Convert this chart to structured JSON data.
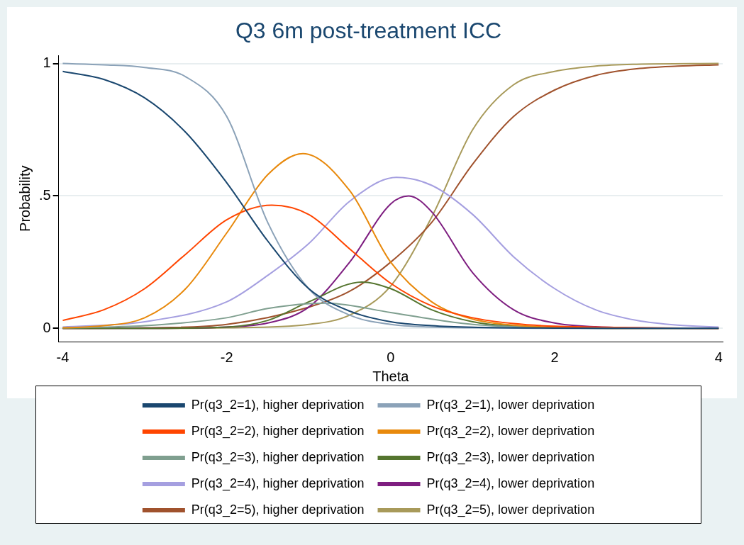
{
  "chart_data": {
    "type": "line",
    "title": "Q3 6m post-treatment ICC",
    "xlabel": "Theta",
    "ylabel": "Probability",
    "xlim": [
      -4.05,
      4.05
    ],
    "xticks": [
      -4,
      -2,
      0,
      2,
      4
    ],
    "ylim": [
      -0.05,
      1.03
    ],
    "yticks": [
      0,
      {
        "value": 0.5,
        "label": ".5"
      },
      1
    ],
    "grid": "y",
    "legend": "bottom",
    "marker": "none",
    "line_style": "solid",
    "series": [
      {
        "name": "Pr(q3_2=1), higher deprivation",
        "color": "#1a476f",
        "x": [
          -4,
          -3.5,
          -3,
          -2.5,
          -2,
          -1.5,
          -1,
          -0.5,
          0,
          0.5,
          1,
          2,
          3,
          4
        ],
        "values": [
          0.97,
          0.94,
          0.87,
          0.74,
          0.55,
          0.33,
          0.15,
          0.065,
          0.025,
          0.01,
          0.004,
          0.001,
          0,
          0
        ]
      },
      {
        "name": "Pr(q3_2=1), lower deprivation",
        "color": "#8ba2b8",
        "x": [
          -4,
          -3.5,
          -3,
          -2.5,
          -2,
          -1.5,
          -1,
          -0.5,
          0,
          0.5,
          1,
          2,
          3,
          4
        ],
        "values": [
          1,
          0.995,
          0.985,
          0.95,
          0.8,
          0.4,
          0.15,
          0.05,
          0.015,
          0.005,
          0.002,
          0,
          0,
          0
        ]
      },
      {
        "name": "Pr(q3_2=2), higher deprivation",
        "color": "#ff4500",
        "x": [
          -4,
          -3.5,
          -3,
          -2.5,
          -2,
          -1.45,
          -1,
          -0.5,
          0,
          0.5,
          1,
          1.5,
          2,
          4
        ],
        "values": [
          0.03,
          0.07,
          0.15,
          0.28,
          0.41,
          0.465,
          0.43,
          0.3,
          0.17,
          0.085,
          0.04,
          0.018,
          0.008,
          0
        ]
      },
      {
        "name": "Pr(q3_2=2), lower deprivation",
        "color": "#e8890c",
        "x": [
          -4,
          -3.5,
          -3,
          -2.5,
          -2,
          -1.5,
          -1.07,
          -0.5,
          0,
          0.5,
          1,
          1.5,
          2,
          3,
          4
        ],
        "values": [
          0.002,
          0.01,
          0.04,
          0.15,
          0.36,
          0.58,
          0.66,
          0.52,
          0.25,
          0.1,
          0.035,
          0.012,
          0.004,
          0,
          0
        ]
      },
      {
        "name": "Pr(q3_2=3), higher deprivation",
        "color": "#7f9f8f",
        "x": [
          -4,
          -3,
          -2,
          -1.5,
          -0.8,
          0,
          0.5,
          1,
          2,
          3,
          4
        ],
        "values": [
          0.002,
          0.01,
          0.04,
          0.075,
          0.095,
          0.06,
          0.035,
          0.015,
          0.003,
          0.001,
          0
        ]
      },
      {
        "name": "Pr(q3_2=3), lower deprivation",
        "color": "#55752f",
        "x": [
          -4,
          -3,
          -2,
          -1.5,
          -1,
          -0.35,
          0,
          0.5,
          1,
          1.5,
          2,
          3,
          4
        ],
        "values": [
          0,
          0,
          0.005,
          0.03,
          0.1,
          0.175,
          0.15,
          0.07,
          0.025,
          0.008,
          0.002,
          0,
          0
        ]
      },
      {
        "name": "Pr(q3_2=4), higher deprivation",
        "color": "#a59fe0",
        "x": [
          -4,
          -3,
          -2,
          -1.5,
          -1,
          -0.5,
          0.07,
          0.5,
          1,
          1.5,
          2,
          2.5,
          3,
          3.5,
          4
        ],
        "values": [
          0.005,
          0.025,
          0.1,
          0.2,
          0.32,
          0.48,
          0.57,
          0.54,
          0.43,
          0.27,
          0.15,
          0.07,
          0.03,
          0.012,
          0.005
        ]
      },
      {
        "name": "Pr(q3_2=4), lower deprivation",
        "color": "#7e1e80",
        "x": [
          -4,
          -3,
          -2,
          -1.5,
          -1,
          -0.5,
          0,
          0.22,
          0.5,
          1,
          1.5,
          2,
          2.5,
          3,
          4
        ],
        "values": [
          0,
          0,
          0.005,
          0.02,
          0.08,
          0.25,
          0.47,
          0.5,
          0.44,
          0.21,
          0.07,
          0.02,
          0.006,
          0.002,
          0
        ]
      },
      {
        "name": "Pr(q3_2=5), higher deprivation",
        "color": "#a0522d",
        "x": [
          -4,
          -3,
          -2,
          -1,
          -0.5,
          0,
          0.5,
          1,
          1.5,
          2,
          2.5,
          3,
          3.5,
          4
        ],
        "values": [
          0,
          0.002,
          0.015,
          0.08,
          0.14,
          0.25,
          0.4,
          0.62,
          0.8,
          0.9,
          0.955,
          0.98,
          0.99,
          0.995
        ]
      },
      {
        "name": "Pr(q3_2=5), lower deprivation",
        "color": "#a89a5a",
        "x": [
          -4,
          -3,
          -2,
          -1,
          -0.5,
          0,
          0.5,
          1,
          1.5,
          2,
          2.5,
          3,
          4
        ],
        "values": [
          0,
          0,
          0.002,
          0.015,
          0.05,
          0.16,
          0.42,
          0.75,
          0.92,
          0.97,
          0.99,
          0.997,
          1
        ]
      }
    ]
  }
}
